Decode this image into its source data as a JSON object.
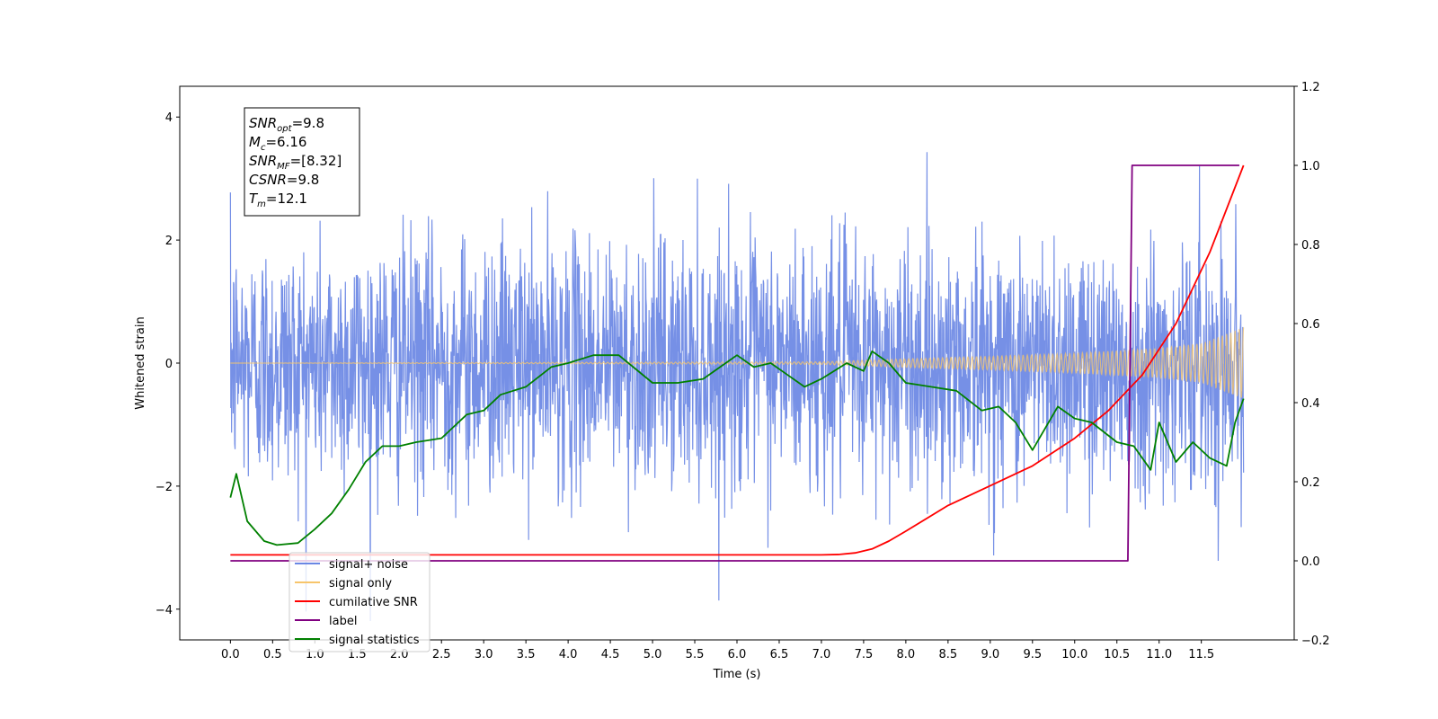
{
  "chart_data": {
    "type": "line",
    "xlabel": "Time (s)",
    "ylabel": "Whitened strain",
    "xlim": [
      -0.6,
      12.6
    ],
    "ylim": [
      -4.5,
      4.5
    ],
    "ylim_right": [
      -0.2,
      1.2
    ],
    "x_ticks": [
      0.0,
      0.5,
      1.0,
      1.5,
      2.0,
      2.5,
      3.0,
      3.5,
      4.0,
      4.5,
      5.0,
      5.5,
      6.0,
      6.5,
      7.0,
      7.5,
      8.0,
      8.5,
      9.0,
      9.5,
      10.0,
      10.5,
      11.0,
      11.5
    ],
    "x_tick_labels": [
      "0.0",
      "0.5",
      "1.0",
      "1.5",
      "2.0",
      "2.5",
      "3.0",
      "3.5",
      "4.0",
      "4.5",
      "5.0",
      "5.5",
      "6.0",
      "6.5",
      "7.0",
      "7.5",
      "8.0",
      "8.5",
      "9.0",
      "9.5",
      "10.0",
      "10.5",
      "11.0",
      "11.5"
    ],
    "y_ticks_left": [
      -4,
      -2,
      0,
      2,
      4
    ],
    "y_tick_labels_left": [
      "−4",
      "−2",
      "0",
      "2",
      "4"
    ],
    "y_ticks_right": [
      -0.2,
      0.0,
      0.2,
      0.4,
      0.6,
      0.8,
      1.0,
      1.2
    ],
    "y_tick_labels_right": [
      "−0.2",
      "0.0",
      "0.2",
      "0.4",
      "0.6",
      "0.8",
      "1.0",
      "1.2"
    ],
    "grid": false,
    "legend_position": "lower-left",
    "annotation": [
      {
        "base": "SNR",
        "sub": "opt",
        "rest": "=9.8"
      },
      {
        "base": "M",
        "sub": "c",
        "rest": "=6.16"
      },
      {
        "base": "SNR",
        "sub": "MF",
        "rest": "=[8.32]"
      },
      {
        "base": "CSNR",
        "sub": "",
        "rest": "=9.8"
      },
      {
        "base": "T",
        "sub": "m",
        "rest": "=12.1"
      }
    ],
    "series": [
      {
        "name": "signal+ noise",
        "axis": "left",
        "color": "#6a87e4",
        "kind": "noise",
        "x_start": 0.0,
        "x_end": 12.0,
        "std": 1.0
      },
      {
        "name": "signal only",
        "axis": "left",
        "color": "#f7c56b",
        "kind": "chirp",
        "x_start": 0.0,
        "x_end": 12.0,
        "envelope": [
          [
            0.0,
            0.0
          ],
          [
            7.0,
            0.02
          ],
          [
            8.0,
            0.07
          ],
          [
            9.0,
            0.11
          ],
          [
            10.0,
            0.16
          ],
          [
            11.0,
            0.24
          ],
          [
            11.5,
            0.32
          ],
          [
            12.0,
            0.58
          ]
        ]
      },
      {
        "name": "cumilative SNR",
        "axis": "right",
        "color": "#ff0000",
        "kind": "line",
        "points": [
          [
            0.0,
            0.015
          ],
          [
            0.02,
            0.015
          ],
          [
            7.0,
            0.015
          ],
          [
            7.2,
            0.016
          ],
          [
            7.4,
            0.02
          ],
          [
            7.6,
            0.03
          ],
          [
            7.8,
            0.05
          ],
          [
            8.0,
            0.075
          ],
          [
            8.5,
            0.14
          ],
          [
            9.0,
            0.19
          ],
          [
            9.5,
            0.24
          ],
          [
            10.0,
            0.31
          ],
          [
            10.4,
            0.38
          ],
          [
            10.8,
            0.47
          ],
          [
            11.2,
            0.6
          ],
          [
            11.6,
            0.78
          ],
          [
            12.0,
            1.0
          ]
        ]
      },
      {
        "name": "label",
        "axis": "right",
        "color": "#800080",
        "kind": "line",
        "points": [
          [
            0.0,
            0.0
          ],
          [
            10.63,
            0.0
          ],
          [
            10.68,
            1.0
          ],
          [
            11.95,
            1.0
          ]
        ]
      },
      {
        "name": "signal statistics",
        "axis": "right",
        "color": "#008000",
        "kind": "line",
        "points": [
          [
            0.0,
            0.16
          ],
          [
            0.07,
            0.22
          ],
          [
            0.2,
            0.1
          ],
          [
            0.4,
            0.05
          ],
          [
            0.55,
            0.04
          ],
          [
            0.8,
            0.045
          ],
          [
            1.0,
            0.08
          ],
          [
            1.2,
            0.12
          ],
          [
            1.4,
            0.18
          ],
          [
            1.6,
            0.25
          ],
          [
            1.8,
            0.29
          ],
          [
            2.0,
            0.29
          ],
          [
            2.2,
            0.3
          ],
          [
            2.5,
            0.31
          ],
          [
            2.8,
            0.37
          ],
          [
            3.0,
            0.38
          ],
          [
            3.2,
            0.42
          ],
          [
            3.5,
            0.44
          ],
          [
            3.8,
            0.49
          ],
          [
            4.0,
            0.5
          ],
          [
            4.3,
            0.52
          ],
          [
            4.6,
            0.52
          ],
          [
            5.0,
            0.45
          ],
          [
            5.3,
            0.45
          ],
          [
            5.6,
            0.46
          ],
          [
            5.8,
            0.49
          ],
          [
            6.0,
            0.52
          ],
          [
            6.2,
            0.49
          ],
          [
            6.4,
            0.5
          ],
          [
            6.6,
            0.47
          ],
          [
            6.8,
            0.44
          ],
          [
            7.0,
            0.46
          ],
          [
            7.3,
            0.5
          ],
          [
            7.5,
            0.48
          ],
          [
            7.6,
            0.53
          ],
          [
            7.8,
            0.5
          ],
          [
            8.0,
            0.45
          ],
          [
            8.3,
            0.44
          ],
          [
            8.6,
            0.43
          ],
          [
            8.9,
            0.38
          ],
          [
            9.1,
            0.39
          ],
          [
            9.3,
            0.35
          ],
          [
            9.5,
            0.28
          ],
          [
            9.8,
            0.39
          ],
          [
            10.0,
            0.36
          ],
          [
            10.2,
            0.35
          ],
          [
            10.5,
            0.3
          ],
          [
            10.7,
            0.29
          ],
          [
            10.9,
            0.23
          ],
          [
            11.0,
            0.35
          ],
          [
            11.2,
            0.25
          ],
          [
            11.4,
            0.3
          ],
          [
            11.6,
            0.26
          ],
          [
            11.8,
            0.24
          ],
          [
            11.9,
            0.35
          ],
          [
            12.0,
            0.41
          ]
        ]
      }
    ]
  }
}
